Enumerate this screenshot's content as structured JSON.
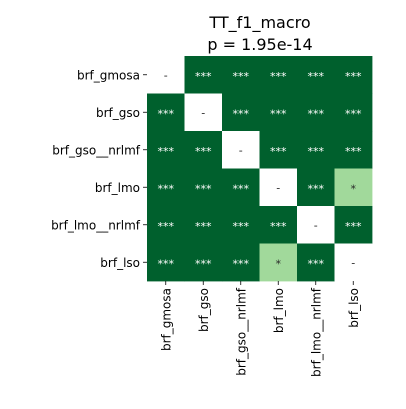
{
  "chart_data": {
    "type": "heatmap",
    "title": "TT_f1_macro",
    "subtitle": "p = 1.95e-14",
    "xlabel": "",
    "ylabel": "",
    "rows": [
      "brf_gmosa",
      "brf_gso",
      "brf_gso__nrlmf",
      "brf_lmo",
      "brf_lmo__nrlmf",
      "brf_lso"
    ],
    "columns": [
      "brf_gmosa",
      "brf_gso",
      "brf_gso__nrlmf",
      "brf_lmo",
      "brf_lmo__nrlmf",
      "brf_lso"
    ],
    "cells": [
      [
        "-",
        "***",
        "***",
        "***",
        "***",
        "***"
      ],
      [
        "***",
        "-",
        "***",
        "***",
        "***",
        "***"
      ],
      [
        "***",
        "***",
        "-",
        "***",
        "***",
        "***"
      ],
      [
        "***",
        "***",
        "***",
        "-",
        "***",
        "*"
      ],
      [
        "***",
        "***",
        "***",
        "***",
        "-",
        "***"
      ],
      [
        "***",
        "***",
        "***",
        "*",
        "***",
        "-"
      ]
    ],
    "colors": {
      "***": "#00602d",
      "*": "#a1d99b",
      "-": "#ffffff"
    },
    "text_colors": {
      "***": "#ffffff",
      "*": "#262626",
      "-": "#262626"
    },
    "legend": "none",
    "grid": false
  }
}
